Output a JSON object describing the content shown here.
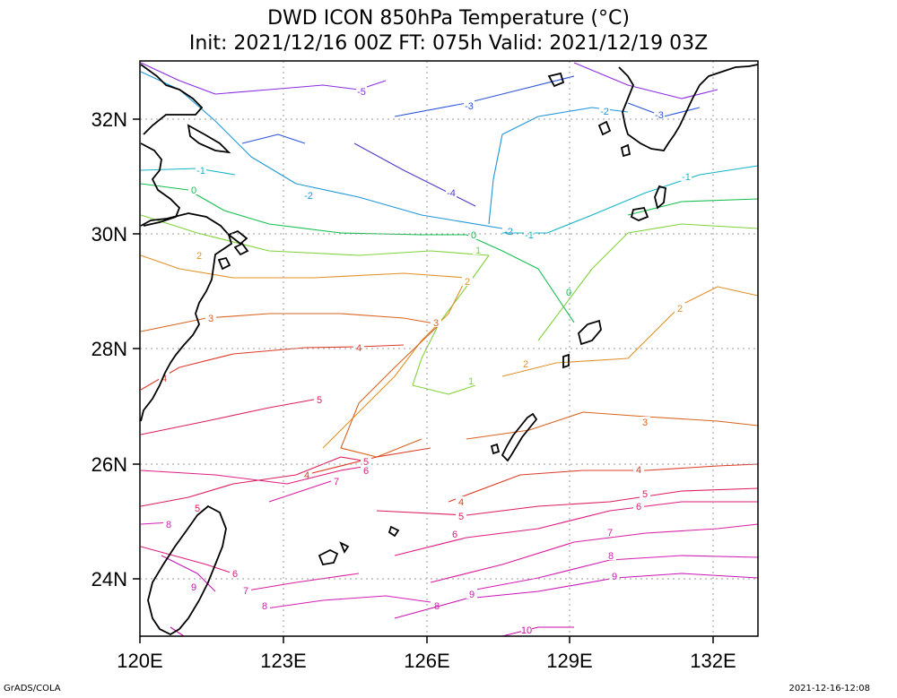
{
  "title_line1": "DWD ICON 850hPa Temperature (°C)",
  "title_line2": "Init: 2021/12/16 00Z  FT: 075h  Valid: 2021/12/19 03Z",
  "lon_labels": [
    "120E",
    "123E",
    "126E",
    "129E",
    "132E"
  ],
  "lat_labels": [
    "32N",
    "30N",
    "28N",
    "26N",
    "24N"
  ],
  "footer_left": "GrADS/COLA",
  "footer_right": "2021-12-16-12:08",
  "contours": [
    {
      "level": "-5",
      "color": "#8a2be2",
      "lines": [
        [
          [
            157,
            70
          ],
          [
            200,
            90
          ],
          [
            240,
            105
          ],
          [
            300,
            100
          ],
          [
            360,
            95
          ],
          [
            400,
            100
          ],
          [
            430,
            90
          ]
        ],
        [
          [
            640,
            70
          ],
          [
            700,
            95
          ],
          [
            760,
            110
          ],
          [
            800,
            100
          ]
        ]
      ],
      "labels": [
        [
          403,
          102
        ]
      ]
    },
    {
      "level": "-4",
      "color": "#4b3cc8",
      "lines": [
        [
          [
            395,
            160
          ],
          [
            450,
            190
          ],
          [
            500,
            215
          ],
          [
            530,
            230
          ]
        ]
      ],
      "labels": [
        [
          503,
          215
        ]
      ]
    },
    {
      "level": "-3",
      "color": "#2c55d6",
      "lines": [
        [
          [
            270,
            160
          ],
          [
            310,
            150
          ],
          [
            340,
            160
          ]
        ],
        [
          [
            440,
            130
          ],
          [
            520,
            115
          ],
          [
            580,
            100
          ],
          [
            640,
            85
          ]
        ],
        [
          [
            700,
            115
          ],
          [
            740,
            130
          ],
          [
            780,
            120
          ]
        ]
      ],
      "labels": [
        [
          523,
          118
        ],
        [
          735,
          128
        ]
      ]
    },
    {
      "level": "-2",
      "color": "#1e96d8",
      "lines": [
        [
          [
            157,
            80
          ],
          [
            200,
            100
          ],
          [
            240,
            135
          ],
          [
            280,
            175
          ],
          [
            330,
            205
          ],
          [
            400,
            220
          ],
          [
            470,
            240
          ],
          [
            560,
            255
          ]
        ],
        [
          [
            545,
            250
          ],
          [
            550,
            200
          ],
          [
            560,
            150
          ],
          [
            600,
            130
          ],
          [
            660,
            120
          ],
          [
            700,
            125
          ]
        ]
      ],
      "labels": [
        [
          344,
          218
        ],
        [
          567,
          258
        ],
        [
          674,
          124
        ]
      ]
    },
    {
      "level": "-1",
      "color": "#14b4c8",
      "lines": [
        [
          [
            157,
            190
          ],
          [
            220,
            188
          ],
          [
            262,
            195
          ]
        ],
        [
          [
            560,
            260
          ],
          [
            610,
            260
          ],
          [
            660,
            240
          ],
          [
            720,
            215
          ],
          [
            780,
            195
          ],
          [
            845,
            185
          ]
        ]
      ],
      "labels": [
        [
          224,
          190
        ],
        [
          590,
          262
        ],
        [
          765,
          197
        ]
      ]
    },
    {
      "level": "0",
      "color": "#14be50",
      "lines": [
        [
          [
            157,
            205
          ],
          [
            210,
            212
          ],
          [
            250,
            235
          ],
          [
            300,
            250
          ],
          [
            380,
            260
          ],
          [
            470,
            262
          ],
          [
            520,
            262
          ]
        ],
        [
          [
            520,
            262
          ],
          [
            560,
            280
          ],
          [
            600,
            300
          ],
          [
            620,
            330
          ],
          [
            640,
            360
          ]
        ],
        [
          [
            700,
            240
          ],
          [
            760,
            225
          ],
          [
            845,
            222
          ]
        ]
      ],
      "labels": [
        [
          216,
          212
        ],
        [
          528,
          262
        ],
        [
          634,
          326
        ]
      ]
    },
    {
      "level": "1",
      "color": "#82d23c",
      "lines": [
        [
          [
            157,
            240
          ],
          [
            220,
            260
          ],
          [
            300,
            280
          ],
          [
            400,
            285
          ],
          [
            480,
            280
          ],
          [
            545,
            285
          ]
        ],
        [
          [
            545,
            285
          ],
          [
            520,
            320
          ],
          [
            490,
            360
          ],
          [
            470,
            400
          ],
          [
            460,
            430
          ],
          [
            500,
            440
          ],
          [
            530,
            430
          ]
        ],
        [
          [
            600,
            380
          ],
          [
            660,
            300
          ],
          [
            700,
            260
          ],
          [
            760,
            250
          ],
          [
            845,
            255
          ]
        ]
      ],
      "labels": [
        [
          533,
          279
        ],
        [
          525,
          425
        ]
      ]
    },
    {
      "level": "2",
      "color": "#e09128",
      "lines": [
        [
          [
            157,
            285
          ],
          [
            200,
            300
          ],
          [
            260,
            310
          ],
          [
            350,
            310
          ],
          [
            450,
            305
          ],
          [
            520,
            310
          ]
        ],
        [
          [
            520,
            310
          ],
          [
            500,
            350
          ],
          [
            470,
            380
          ],
          [
            440,
            420
          ],
          [
            400,
            460
          ],
          [
            360,
            500
          ]
        ],
        [
          [
            560,
            420
          ],
          [
            620,
            405
          ],
          [
            700,
            400
          ],
          [
            760,
            340
          ],
          [
            800,
            320
          ],
          [
            845,
            330
          ]
        ]
      ],
      "labels": [
        [
          222,
          285
        ],
        [
          521,
          314
        ],
        [
          586,
          406
        ],
        [
          758,
          344
        ]
      ]
    },
    {
      "level": "3",
      "color": "#d8641e",
      "lines": [
        [
          [
            157,
            370
          ],
          [
            230,
            355
          ],
          [
            300,
            350
          ],
          [
            380,
            350
          ],
          [
            450,
            355
          ],
          [
            490,
            362
          ]
        ],
        [
          [
            490,
            362
          ],
          [
            440,
            410
          ],
          [
            400,
            450
          ],
          [
            380,
            500
          ],
          [
            420,
            510
          ],
          [
            470,
            490
          ]
        ],
        [
          [
            520,
            490
          ],
          [
            590,
            480
          ],
          [
            650,
            460
          ],
          [
            720,
            465
          ],
          [
            800,
            470
          ],
          [
            845,
            475
          ]
        ]
      ],
      "labels": [
        [
          235,
          355
        ],
        [
          486,
          360
        ],
        [
          719,
          471
        ]
      ]
    },
    {
      "level": "4",
      "color": "#dc3c28",
      "lines": [
        [
          [
            157,
            435
          ],
          [
            200,
            410
          ],
          [
            260,
            395
          ],
          [
            340,
            388
          ],
          [
            400,
            387
          ],
          [
            450,
            385
          ]
        ],
        [
          [
            340,
            530
          ],
          [
            420,
            510
          ],
          [
            480,
            500
          ]
        ],
        [
          [
            500,
            560
          ],
          [
            580,
            530
          ],
          [
            650,
            525
          ],
          [
            720,
            525
          ],
          [
            800,
            520
          ],
          [
            845,
            518
          ]
        ]
      ],
      "labels": [
        [
          400,
          388
        ],
        [
          183,
          422
        ],
        [
          342,
          530
        ],
        [
          514,
          560
        ],
        [
          712,
          524
        ]
      ]
    },
    {
      "level": "5",
      "color": "#dc1e5a",
      "lines": [
        [
          [
            157,
            485
          ],
          [
            230,
            470
          ],
          [
            300,
            455
          ],
          [
            355,
            445
          ]
        ],
        [
          [
            157,
            565
          ],
          [
            210,
            555
          ],
          [
            260,
            540
          ],
          [
            330,
            530
          ],
          [
            380,
            510
          ],
          [
            410,
            515
          ]
        ],
        [
          [
            420,
            570
          ],
          [
            520,
            575
          ],
          [
            600,
            565
          ],
          [
            680,
            560
          ],
          [
            760,
            548
          ],
          [
            845,
            545
          ]
        ]
      ],
      "labels": [
        [
          356,
          446
        ],
        [
          220,
          567
        ],
        [
          408,
          515
        ],
        [
          514,
          576
        ],
        [
          719,
          551
        ]
      ]
    },
    {
      "level": "6",
      "color": "#dc1e82",
      "lines": [
        [
          [
            157,
            525
          ],
          [
            240,
            530
          ],
          [
            320,
            540
          ],
          [
            380,
            525
          ],
          [
            410,
            520
          ]
        ],
        [
          [
            157,
            610
          ],
          [
            230,
            630
          ],
          [
            260,
            640
          ]
        ],
        [
          [
            440,
            620
          ],
          [
            520,
            600
          ],
          [
            600,
            590
          ],
          [
            680,
            570
          ],
          [
            760,
            560
          ],
          [
            845,
            560
          ]
        ]
      ],
      "labels": [
        [
          408,
          525
        ],
        [
          262,
          640
        ],
        [
          507,
          596
        ],
        [
          712,
          565
        ]
      ]
    },
    {
      "level": "7",
      "color": "#d81ea0",
      "lines": [
        [
          [
            300,
            560
          ],
          [
            360,
            540
          ],
          [
            375,
            535
          ]
        ],
        [
          [
            270,
            660
          ],
          [
            330,
            650
          ],
          [
            400,
            640
          ]
        ],
        [
          [
            480,
            650
          ],
          [
            560,
            630
          ],
          [
            640,
            605
          ],
          [
            720,
            595
          ],
          [
            800,
            590
          ],
          [
            845,
            585
          ]
        ]
      ],
      "labels": [
        [
          375,
          537
        ],
        [
          274,
          659
        ],
        [
          680,
          594
        ]
      ]
    },
    {
      "level": "8",
      "color": "#d21eb4",
      "lines": [
        [
          [
            157,
            585
          ],
          [
            190,
            583
          ]
        ],
        [
          [
            290,
            680
          ],
          [
            360,
            670
          ],
          [
            430,
            665
          ],
          [
            480,
            672
          ]
        ],
        [
          [
            520,
            660
          ],
          [
            600,
            645
          ],
          [
            680,
            625
          ],
          [
            760,
            620
          ],
          [
            845,
            622
          ]
        ]
      ],
      "labels": [
        [
          188,
          585
        ],
        [
          295,
          676
        ],
        [
          487,
          676
        ],
        [
          681,
          620
        ]
      ]
    },
    {
      "level": "9",
      "color": "#c814b4",
      "lines": [
        [
          [
            440,
            690
          ],
          [
            520,
            668
          ],
          [
            600,
            660
          ],
          [
            686,
            645
          ],
          [
            760,
            640
          ],
          [
            845,
            645
          ]
        ],
        [
          [
            180,
            620
          ],
          [
            220,
            640
          ],
          [
            240,
            660
          ]
        ]
      ],
      "labels": [
        [
          526,
          663
        ],
        [
          685,
          643
        ],
        [
          216,
          655
        ]
      ]
    },
    {
      "level": "10",
      "color": "#c80aa0",
      "lines": [
        [
          [
            560,
            710
          ],
          [
            600,
            700
          ],
          [
            640,
            700
          ]
        ],
        [
          [
            190,
            700
          ],
          [
            205,
            710
          ]
        ]
      ],
      "labels": [
        [
          587,
          703
        ]
      ]
    }
  ]
}
